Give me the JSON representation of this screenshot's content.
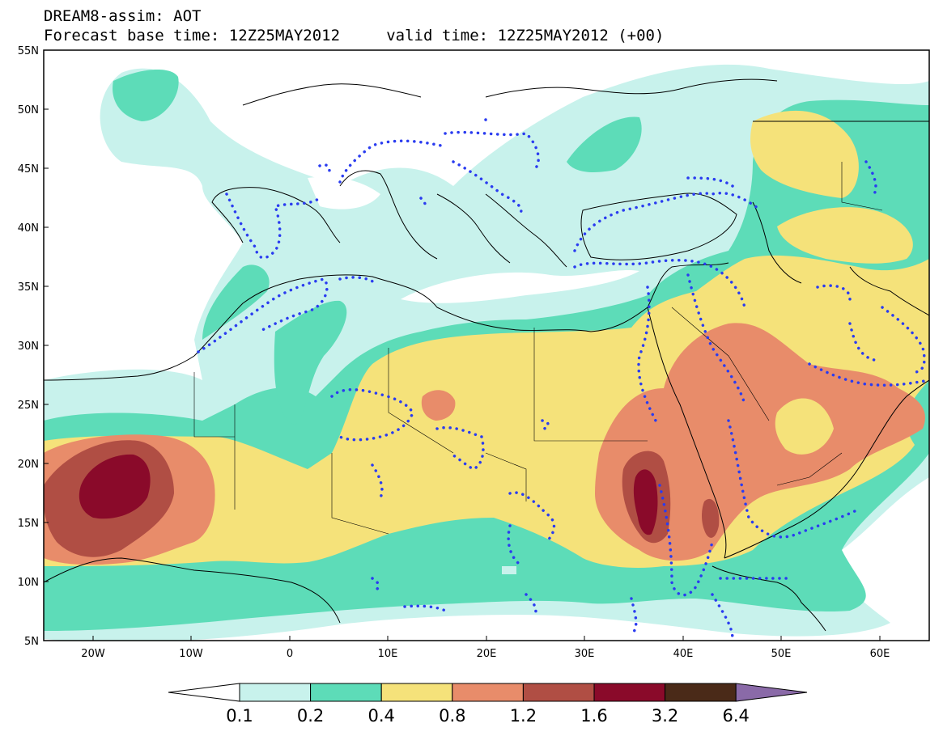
{
  "title": {
    "line1": "DREAM8-assim: AOT",
    "line2": "Forecast base time: 12Z25MAY2012     valid time: 12Z25MAY2012 (+00)"
  },
  "map": {
    "lon_range": [
      -25,
      65
    ],
    "lat_range": [
      5,
      55
    ],
    "lat_labels": [
      "55N",
      "50N",
      "45N",
      "40N",
      "35N",
      "30N",
      "25N",
      "20N",
      "15N",
      "10N",
      "5N"
    ],
    "lon_labels": [
      "20W",
      "10W",
      "0",
      "10E",
      "20E",
      "30E",
      "40E",
      "50E",
      "60E"
    ]
  },
  "colorbar": {
    "labels": [
      "0.1",
      "0.2",
      "0.4",
      "0.8",
      "1.2",
      "1.6",
      "3.2",
      "6.4"
    ],
    "colors": [
      "#ffffff",
      "#c8f2ec",
      "#5ddcb8",
      "#f5e27a",
      "#e88c6a",
      "#b04e44",
      "#8a0a2a",
      "#4a2a18",
      "#8a6aa8"
    ]
  },
  "colors": {
    "lvl1": "#c8f2ec",
    "lvl2": "#5ddcb8",
    "lvl3": "#f5e27a",
    "lvl4": "#e88c6a",
    "lvl5": "#b04e44",
    "lvl6": "#8a0a2a",
    "dots": "#2a3cf0"
  }
}
